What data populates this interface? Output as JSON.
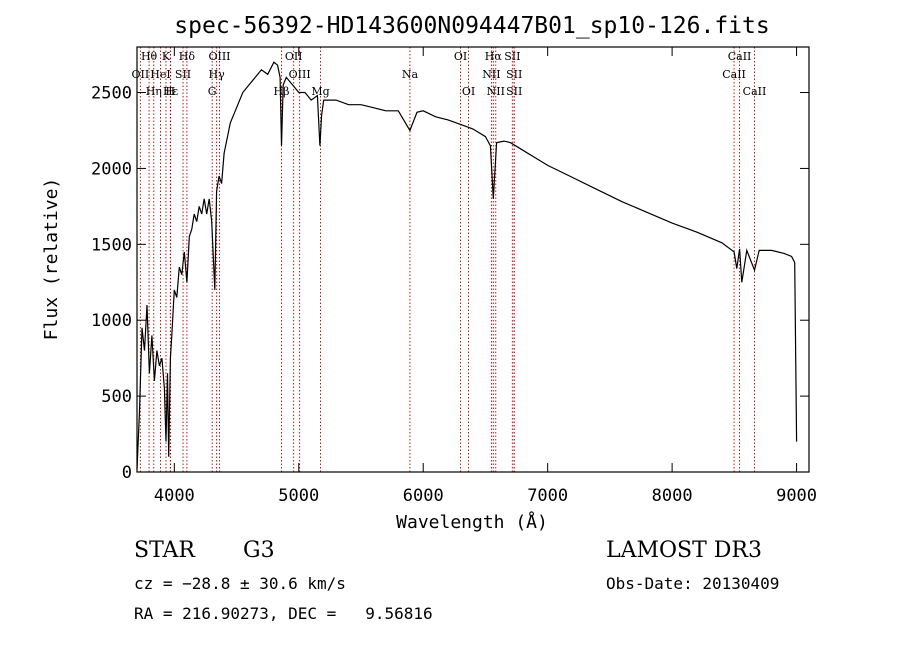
{
  "chart_data": {
    "type": "line",
    "title": "spec-56392-HD143600N094447B01_sp10-126.fits",
    "xlabel": "Wavelength (Å)",
    "ylabel": "Flux (relative)",
    "xlim": [
      3700,
      9100
    ],
    "ylim": [
      0,
      2800
    ],
    "xticks": [
      4000,
      5000,
      6000,
      7000,
      8000,
      9000
    ],
    "yticks": [
      0,
      500,
      1000,
      1500,
      2000,
      2500
    ],
    "grid": false,
    "series": [
      {
        "x": [
          3700,
          3720,
          3740,
          3760,
          3780,
          3800,
          3820,
          3840,
          3860,
          3880,
          3900,
          3920,
          3933,
          3945,
          3955,
          3968,
          3980,
          4000,
          4020,
          4040,
          4060,
          4080,
          4101,
          4120,
          4140,
          4160,
          4180,
          4200,
          4220,
          4240,
          4260,
          4280,
          4300,
          4325,
          4340,
          4360,
          4380,
          4400,
          4450,
          4500,
          4550,
          4600,
          4650,
          4700,
          4750,
          4800,
          4830,
          4850,
          4861,
          4875,
          4900,
          4950,
          5000,
          5050,
          5100,
          5150,
          5170,
          5183,
          5200,
          5300,
          5400,
          5500,
          5600,
          5700,
          5800,
          5893,
          5950,
          6000,
          6100,
          6200,
          6300,
          6400,
          6500,
          6540,
          6563,
          6590,
          6650,
          6700,
          6800,
          6900,
          7000,
          7200,
          7400,
          7600,
          7800,
          8000,
          8200,
          8400,
          8498,
          8520,
          8542,
          8560,
          8600,
          8662,
          8700,
          8800,
          8900,
          8960,
          8985,
          9000
        ],
        "y": [
          20,
          400,
          950,
          800,
          1100,
          650,
          900,
          600,
          800,
          700,
          750,
          550,
          200,
          650,
          100,
          750,
          900,
          1200,
          1150,
          1350,
          1300,
          1450,
          1250,
          1550,
          1600,
          1700,
          1650,
          1750,
          1700,
          1800,
          1700,
          1800,
          1650,
          1200,
          1850,
          1950,
          1900,
          2100,
          2300,
          2400,
          2500,
          2550,
          2600,
          2650,
          2620,
          2700,
          2680,
          2600,
          2150,
          2550,
          2600,
          2550,
          2500,
          2500,
          2450,
          2480,
          2150,
          2350,
          2450,
          2450,
          2420,
          2420,
          2400,
          2380,
          2380,
          2250,
          2370,
          2380,
          2340,
          2320,
          2290,
          2260,
          2210,
          2150,
          1800,
          2170,
          2180,
          2170,
          2120,
          2070,
          2020,
          1940,
          1860,
          1780,
          1710,
          1640,
          1580,
          1510,
          1450,
          1340,
          1470,
          1250,
          1460,
          1330,
          1460,
          1460,
          1440,
          1420,
          1380,
          200
        ]
      }
    ],
    "lines": {
      "top": [
        {
          "label": "Hθ",
          "x": 3797
        },
        {
          "label": "K",
          "x": 3933
        },
        {
          "label": "Hδ",
          "x": 4101
        },
        {
          "label": "OIII",
          "x": 4363
        },
        {
          "label": "OII",
          "x": 4959
        },
        {
          "label": "OI",
          "x": 6300
        },
        {
          "label": "Hα",
          "x": 6563
        },
        {
          "label": "SII",
          "x": 6716
        },
        {
          "label": "CaII",
          "x": 8542
        }
      ],
      "mid": [
        {
          "label": "OII",
          "x": 3727
        },
        {
          "label": "HeI",
          "x": 3889
        },
        {
          "label": "SII",
          "x": 4070
        },
        {
          "label": "Hγ",
          "x": 4340
        },
        {
          "label": "OIII",
          "x": 5007
        },
        {
          "label": "Na",
          "x": 5893
        },
        {
          "label": "NII",
          "x": 6548
        },
        {
          "label": "SII",
          "x": 6731
        },
        {
          "label": "CaII",
          "x": 8498
        }
      ],
      "low": [
        {
          "label": "Hε",
          "x": 3970
        },
        {
          "label": "Hη",
          "x": 3835
        },
        {
          "label": "H",
          "x": 3968
        },
        {
          "label": "G",
          "x": 4304
        },
        {
          "label": "Hβ",
          "x": 4861
        },
        {
          "label": "Mg",
          "x": 5175
        },
        {
          "label": "OI",
          "x": 6364
        },
        {
          "label": "NII",
          "x": 6583
        },
        {
          "label": "SII",
          "x": 6731
        },
        {
          "label": "CaII",
          "x": 8662
        }
      ]
    },
    "line_color": "#b00000"
  },
  "info": {
    "class": "STAR",
    "subclass": "G3",
    "survey": "LAMOST DR3",
    "cz": "cz = −28.8 ± 30.6 km/s",
    "obs_date": "Obs-Date: 20130409",
    "coords": "RA = 216.90273, DEC =   9.56816"
  }
}
